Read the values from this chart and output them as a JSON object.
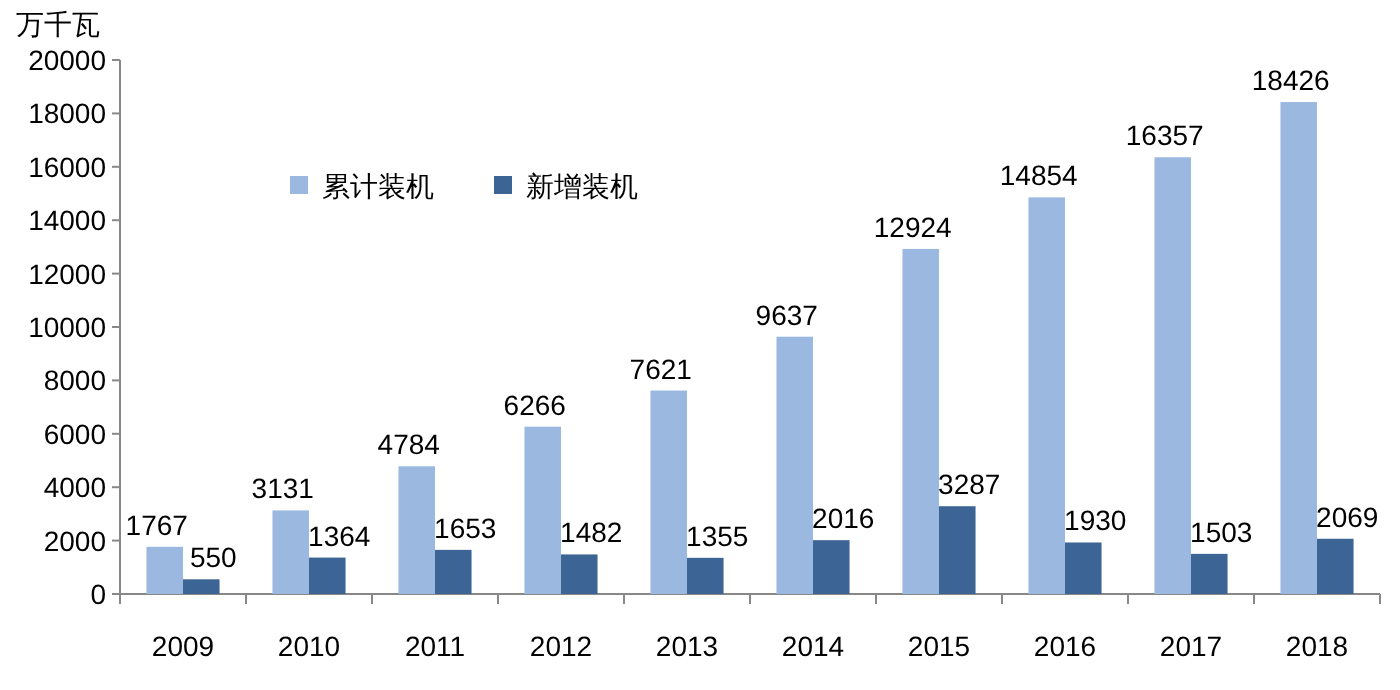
{
  "chart_data": {
    "type": "bar",
    "ylabel": "万千瓦",
    "categories": [
      "2009",
      "2010",
      "2011",
      "2012",
      "2013",
      "2014",
      "2015",
      "2016",
      "2017",
      "2018"
    ],
    "series": [
      {
        "name": "累计装机",
        "color": "#9bb9e0",
        "values": [
          1767,
          3131,
          4784,
          6266,
          7621,
          9637,
          12924,
          14854,
          16357,
          18426
        ]
      },
      {
        "name": "新增装机",
        "color": "#3c6494",
        "values": [
          550,
          1364,
          1653,
          1482,
          1355,
          2016,
          3287,
          1930,
          1503,
          2069
        ]
      }
    ],
    "ylim": [
      0,
      20000
    ],
    "yticks": [
      0,
      2000,
      4000,
      6000,
      8000,
      10000,
      12000,
      14000,
      16000,
      18000,
      20000
    ],
    "data_labels": true,
    "legend": "top left",
    "grid": false
  }
}
